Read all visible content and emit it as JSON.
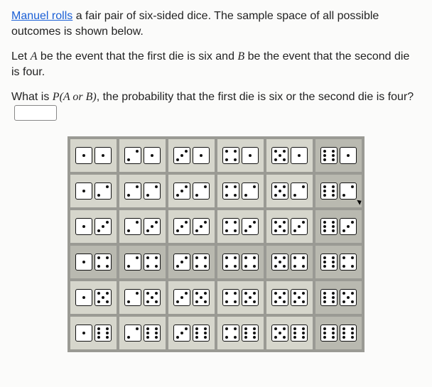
{
  "text": {
    "intro_link": "Manuel rolls",
    "intro_rest": " a fair pair of six-sided dice. The sample space of all possible outcomes is shown below.",
    "para2_a": "Let ",
    "A": "A",
    "para2_b": " be the event that the first die is six and ",
    "B": "B",
    "para2_c": " be the event that the second die is four.",
    "q_a": "What is ",
    "PAB": "P(A or B)",
    "q_b": ", the probability that the first die is six or the second die is four?"
  },
  "dice": {
    "faces": {
      "1": [
        5
      ],
      "2": [
        3,
        7
      ],
      "3": [
        3,
        5,
        7
      ],
      "4": [
        1,
        3,
        7,
        9
      ],
      "5": [
        1,
        3,
        5,
        7,
        9
      ],
      "6": [
        1,
        3,
        4,
        6,
        7,
        9
      ]
    }
  },
  "grid": {
    "rows": 6,
    "cols": 6,
    "highlight_row": 4,
    "highlight_col": 6,
    "cursor_cell": [
      2,
      6
    ]
  },
  "colors": {
    "link": "#1a5fd6",
    "grid_bg": "#9a9a94",
    "cell_bg": "#d6d6cc",
    "cell_hl": "#b9b9b0",
    "pip": "#111111",
    "die_bg": "#ffffff"
  }
}
